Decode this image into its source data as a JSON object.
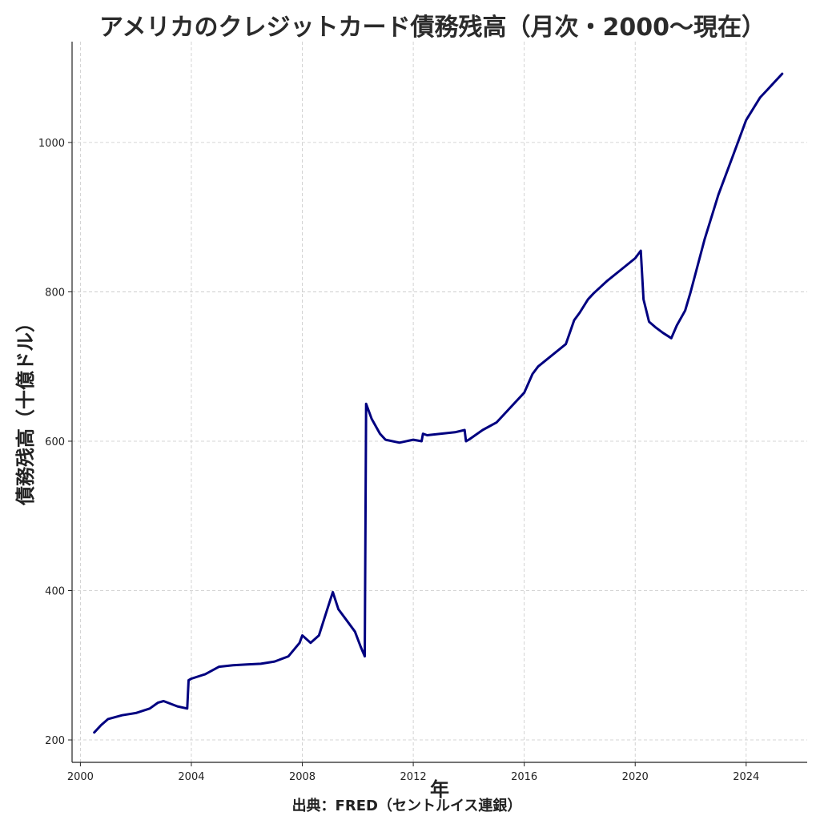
{
  "chart_data": {
    "type": "line",
    "title": "アメリカのクレジットカード債務残高（月次・2000〜現在）",
    "xlabel": "年",
    "ylabel": "債務残高（十億ドル）",
    "source": "出典：FRED（セントルイス連銀）",
    "grid": true,
    "xlim": [
      1999.7,
      2026.2
    ],
    "ylim": [
      170,
      1135
    ],
    "x_ticks": [
      2000,
      2004,
      2008,
      2012,
      2016,
      2020,
      2024
    ],
    "y_ticks": [
      200,
      400,
      600,
      800,
      1000
    ],
    "line_color": "#000080",
    "series": [
      {
        "name": "",
        "x": [
          2000.5,
          2000.75,
          2001.0,
          2001.5,
          2002.0,
          2002.5,
          2002.8,
          2003.0,
          2003.5,
          2003.85,
          2003.9,
          2004.0,
          2004.5,
          2005.0,
          2005.5,
          2006.0,
          2006.5,
          2007.0,
          2007.5,
          2007.9,
          2008.0,
          2008.3,
          2008.6,
          2008.9,
          2009.1,
          2009.3,
          2009.6,
          2009.9,
          2010.1,
          2010.25,
          2010.3,
          2010.5,
          2010.8,
          2011.0,
          2011.5,
          2012.0,
          2012.3,
          2012.35,
          2012.5,
          2013.0,
          2013.5,
          2013.85,
          2013.9,
          2014.0,
          2014.5,
          2015.0,
          2015.5,
          2016.0,
          2016.3,
          2016.5,
          2017.0,
          2017.5,
          2017.8,
          2018.0,
          2018.3,
          2018.5,
          2019.0,
          2019.5,
          2020.0,
          2020.2,
          2020.3,
          2020.5,
          2020.75,
          2021.0,
          2021.3,
          2021.5,
          2021.8,
          2022.0,
          2022.5,
          2023.0,
          2023.5,
          2024.0,
          2024.5,
          2024.75,
          2025.0,
          2025.3
        ],
        "y": [
          210,
          220,
          228,
          233,
          236,
          242,
          250,
          252,
          245,
          242,
          280,
          282,
          288,
          298,
          300,
          301,
          302,
          305,
          312,
          330,
          340,
          330,
          340,
          375,
          398,
          375,
          360,
          345,
          325,
          312,
          650,
          630,
          610,
          602,
          598,
          602,
          600,
          610,
          608,
          610,
          612,
          615,
          600,
          602,
          615,
          625,
          645,
          665,
          690,
          700,
          715,
          730,
          762,
          772,
          790,
          798,
          815,
          830,
          845,
          855,
          790,
          760,
          752,
          745,
          738,
          755,
          775,
          800,
          870,
          930,
          980,
          1030,
          1060,
          1070,
          1080,
          1092
        ]
      }
    ]
  }
}
